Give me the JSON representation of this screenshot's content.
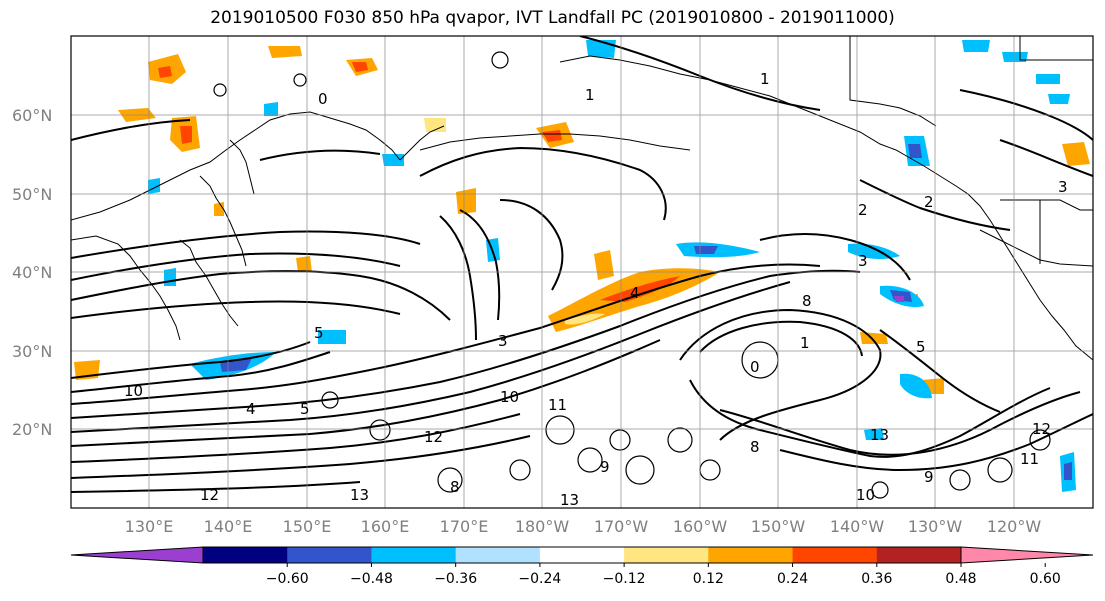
{
  "title": "2019010500 F030 850 hPa qvapor, IVT Landfall PC (2019010800 - 2019011000)",
  "lat_labels": [
    "60°N",
    "50°N",
    "40°N",
    "30°N",
    "20°N"
  ],
  "lon_labels": [
    "130°E",
    "140°E",
    "150°E",
    "160°E",
    "170°E",
    "180°W",
    "170°W",
    "160°W",
    "150°W",
    "140°W",
    "130°W",
    "120°W"
  ],
  "colorbar": {
    "ticks": [
      "−0.60",
      "−0.48",
      "−0.36",
      "−0.24",
      "−0.12",
      "0.12",
      "0.24",
      "0.36",
      "0.48",
      "0.60"
    ],
    "colors": [
      "#9b3fd0",
      "#000080",
      "#3355cc",
      "#00bfff",
      "#b0e2ff",
      "#ffffff",
      "#ffe680",
      "#ffa500",
      "#ff4500",
      "#b22222",
      "#ff88aa"
    ]
  },
  "contour_labels": [
    "1",
    "0",
    "1",
    "2",
    "2",
    "3",
    "3",
    "4",
    "5",
    "3",
    "10",
    "4",
    "5",
    "12",
    "13",
    "12",
    "11",
    "10",
    "8",
    "9",
    "8",
    "13",
    "1",
    "0",
    "5",
    "8",
    "9",
    "13",
    "12",
    "11",
    "10"
  ]
}
